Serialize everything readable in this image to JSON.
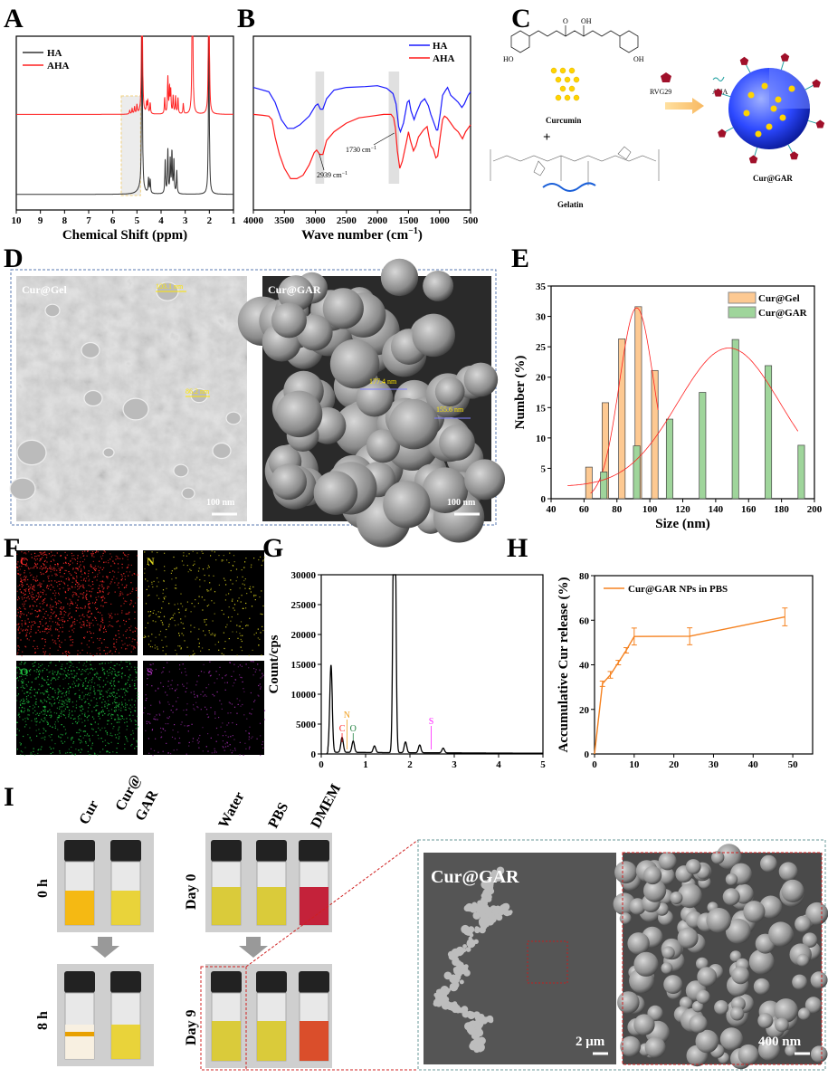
{
  "panel_labels": [
    "A",
    "B",
    "C",
    "D",
    "E",
    "F",
    "G",
    "H",
    "I"
  ],
  "chart_data": [
    {
      "panel": "A",
      "type": "line",
      "xlabel": "Chemical Shift (ppm)",
      "xlim": [
        10,
        1
      ],
      "xticks": [
        10,
        9,
        8,
        7,
        6,
        5,
        4,
        3,
        2,
        1
      ],
      "ylim": [
        0,
        100
      ],
      "grid": false,
      "legend_position": "top-left",
      "highlight_region_ppm": [
        5.65,
        4.85
      ],
      "series": [
        {
          "name": "HA",
          "color": "#333333",
          "baseline": 9,
          "peaks": [
            [
              4.79,
              120
            ],
            [
              4.85,
              3
            ],
            [
              4.52,
              8.5
            ],
            [
              4.45,
              7.5
            ],
            [
              3.83,
              19
            ],
            [
              3.72,
              25
            ],
            [
              3.62,
              19
            ],
            [
              3.55,
              23
            ],
            [
              3.47,
              19
            ],
            [
              3.35,
              13
            ],
            [
              2.02,
              120
            ]
          ]
        },
        {
          "name": "AHA",
          "color": "#ff2020",
          "baseline": 55,
          "peaks": [
            [
              5.3,
              2
            ],
            [
              5.2,
              3
            ],
            [
              5.1,
              4
            ],
            [
              5.0,
              5
            ],
            [
              4.79,
              120
            ],
            [
              4.6,
              6
            ],
            [
              4.55,
              7
            ],
            [
              4.45,
              6
            ],
            [
              3.85,
              9
            ],
            [
              3.72,
              21
            ],
            [
              3.65,
              14
            ],
            [
              3.6,
              13
            ],
            [
              3.5,
              10
            ],
            [
              3.4,
              10
            ],
            [
              3.3,
              9
            ],
            [
              3.08,
              6
            ],
            [
              2.7,
              120
            ],
            [
              2.02,
              120
            ]
          ]
        }
      ]
    },
    {
      "panel": "B",
      "type": "line",
      "xlabel": "Wave number (cm",
      "xlabel_sup": "−1",
      "xlabel_end": ")",
      "xlim": [
        4000,
        500
      ],
      "xticks": [
        4000,
        3500,
        3000,
        2500,
        2000,
        1500,
        1000,
        500
      ],
      "ylim": [
        0,
        100
      ],
      "grid": false,
      "legend_position": "top-right",
      "highlight_bands": [
        [
          3000,
          2860
        ],
        [
          1820,
          1650
        ]
      ],
      "annotations": [
        {
          "text": "2939 cm",
          "sup": "−1",
          "x": 2939
        },
        {
          "text": "1730 cm",
          "sup": "−1",
          "x": 1730
        }
      ],
      "series": [
        {
          "name": "HA",
          "color": "#1a1aff",
          "points": [
            [
              4000,
              70.5
            ],
            [
              3750,
              68
            ],
            [
              3650,
              62
            ],
            [
              3550,
              52
            ],
            [
              3450,
              47
            ],
            [
              3350,
              47
            ],
            [
              3250,
              49
            ],
            [
              3100,
              54
            ],
            [
              3000,
              60
            ],
            [
              2960,
              61
            ],
            [
              2920,
              58
            ],
            [
              2880,
              58
            ],
            [
              2820,
              64
            ],
            [
              2700,
              69
            ],
            [
              2500,
              70.5
            ],
            [
              2200,
              71
            ],
            [
              2000,
              71.5
            ],
            [
              1850,
              70
            ],
            [
              1750,
              67
            ],
            [
              1700,
              61
            ],
            [
              1660,
              48
            ],
            [
              1630,
              45
            ],
            [
              1580,
              50
            ],
            [
              1520,
              62
            ],
            [
              1490,
              63
            ],
            [
              1460,
              57
            ],
            [
              1410,
              52
            ],
            [
              1370,
              56
            ],
            [
              1300,
              62
            ],
            [
              1240,
              64
            ],
            [
              1180,
              60
            ],
            [
              1140,
              55
            ],
            [
              1100,
              51
            ],
            [
              1050,
              46
            ],
            [
              1030,
              46
            ],
            [
              990,
              55
            ],
            [
              950,
              66
            ],
            [
              900,
              69
            ],
            [
              870,
              70.5
            ],
            [
              820,
              66
            ],
            [
              760,
              64
            ],
            [
              700,
              62
            ],
            [
              640,
              59
            ],
            [
              600,
              61
            ],
            [
              540,
              66
            ],
            [
              500,
              68
            ]
          ]
        },
        {
          "name": "AHA",
          "color": "#ff1a1a",
          "points": [
            [
              4000,
              55
            ],
            [
              3850,
              54.5
            ],
            [
              3750,
              54
            ],
            [
              3700,
              52
            ],
            [
              3650,
              42
            ],
            [
              3580,
              32
            ],
            [
              3500,
              24
            ],
            [
              3400,
              18
            ],
            [
              3300,
              18
            ],
            [
              3200,
              20
            ],
            [
              3100,
              26
            ],
            [
              3020,
              33
            ],
            [
              2980,
              34.5
            ],
            [
              2930,
              32
            ],
            [
              2880,
              32
            ],
            [
              2820,
              40
            ],
            [
              2700,
              45
            ],
            [
              2500,
              50
            ],
            [
              2300,
              53
            ],
            [
              2100,
              54
            ],
            [
              1900,
              55
            ],
            [
              1780,
              55
            ],
            [
              1740,
              53
            ],
            [
              1710,
              47
            ],
            [
              1680,
              34
            ],
            [
              1640,
              24
            ],
            [
              1600,
              28
            ],
            [
              1540,
              38
            ],
            [
              1500,
              45
            ],
            [
              1470,
              40
            ],
            [
              1420,
              34
            ],
            [
              1380,
              37
            ],
            [
              1340,
              42
            ],
            [
              1260,
              46
            ],
            [
              1200,
              48
            ],
            [
              1170,
              42
            ],
            [
              1140,
              37
            ],
            [
              1100,
              35
            ],
            [
              1060,
              30
            ],
            [
              1030,
              31
            ],
            [
              990,
              42
            ],
            [
              950,
              52
            ],
            [
              920,
              54
            ],
            [
              880,
              53
            ],
            [
              820,
              50
            ],
            [
              760,
              47
            ],
            [
              700,
              45
            ],
            [
              630,
              41
            ],
            [
              580,
              45
            ],
            [
              500,
              49
            ]
          ]
        }
      ]
    },
    {
      "panel": "E",
      "type": "bar",
      "xlabel": "Size (nm)",
      "ylabel": "Number (%)",
      "xlim": [
        40,
        200
      ],
      "ylim": [
        0,
        35
      ],
      "xticks": [
        40,
        60,
        80,
        100,
        120,
        140,
        160,
        180,
        200
      ],
      "yticks": [
        0,
        5,
        10,
        15,
        20,
        25,
        30,
        35
      ],
      "legend_position": "top-right",
      "series": [
        {
          "name": "Cur@Gel",
          "color": "#fdc992",
          "x": [
            63,
            73,
            83,
            93,
            103
          ],
          "values": [
            5.2,
            15.8,
            26.3,
            31.6,
            21.1
          ],
          "fit": {
            "type": "gaussian",
            "center": 92,
            "amplitude": 31.4,
            "sigma": 10.5,
            "offset": 0,
            "range": [
              64,
              105
            ]
          }
        },
        {
          "name": "Cur@GAR",
          "color": "#9fd59b",
          "x": [
            72,
            92,
            112,
            132,
            152,
            172,
            192
          ],
          "values": [
            4.4,
            8.7,
            13.1,
            17.5,
            26.2,
            21.9,
            8.8
          ],
          "fit": {
            "type": "gaussian",
            "center": 148,
            "amplitude": 22.8,
            "sigma": 31,
            "offset": 2,
            "range": [
              50,
              190
            ]
          }
        }
      ],
      "fit_color": "#ff2020"
    },
    {
      "panel": "G",
      "type": "line",
      "ylabel": "Count/cps",
      "xlim": [
        0,
        5
      ],
      "ylim": [
        0,
        30000
      ],
      "xticks": [
        0,
        1,
        2,
        3,
        4,
        5
      ],
      "yticks": [
        0,
        5000,
        10000,
        15000,
        20000,
        25000,
        30000
      ],
      "baseline": 250,
      "peaks": [
        [
          0.22,
          14600
        ],
        [
          0.47,
          2500
        ],
        [
          0.72,
          1900
        ],
        [
          1.2,
          1100
        ],
        [
          1.65,
          60000
        ],
        [
          1.9,
          1800
        ],
        [
          2.22,
          1300
        ],
        [
          2.75,
          800
        ]
      ],
      "element_markers": [
        {
          "label": "C",
          "x": 0.47,
          "color": "#ff2020"
        },
        {
          "label": "N",
          "x": 0.58,
          "color": "#f0a020"
        },
        {
          "label": "O",
          "x": 0.72,
          "color": "#208040"
        },
        {
          "label": "S",
          "x": 2.48,
          "color": "#ff20ff"
        }
      ]
    },
    {
      "panel": "H",
      "type": "line",
      "ylabel": "Accumulative Cur release (%)",
      "xlim": [
        0,
        55
      ],
      "ylim": [
        0,
        80
      ],
      "xticks": [
        0,
        10,
        20,
        30,
        40,
        50
      ],
      "yticks": [
        0,
        20,
        40,
        60,
        80
      ],
      "legend_position": "top-left",
      "series": [
        {
          "name": "Cur@GAR NPs in PBS",
          "color": "#f58220",
          "x": [
            0,
            2,
            4,
            6,
            8,
            10,
            24,
            48
          ],
          "values": [
            0,
            31.5,
            35.5,
            41,
            46.5,
            52.7,
            52.8,
            61.5
          ],
          "errors": [
            0,
            1.2,
            1.5,
            1,
            1.2,
            3.8,
            3.8,
            4
          ]
        }
      ]
    }
  ],
  "scheme_c": {
    "curcumin_label": "Curcumin",
    "plus": "+",
    "gelatin_label": "Gelatin",
    "rvg29_label": "RVG29",
    "aha_label": "AHA",
    "product_label": "Cur@GAR",
    "atom_labels": [
      "HO",
      "O",
      "OH",
      "OH",
      "O"
    ],
    "sphere_color": "#1f3cff",
    "drug_color": "#ffd400",
    "peptide_color": "#a0102a"
  },
  "sem_d": {
    "left": {
      "title": "Cur@Gel",
      "measures": [
        "103.1 nm",
        "86.2 nm"
      ],
      "scale": "100 nm"
    },
    "right": {
      "title": "Cur@GAR",
      "measures": [
        "177.4 nm",
        "155.6 nm"
      ],
      "scale": "100 nm"
    }
  },
  "eds_f": {
    "maps": [
      {
        "element": "C",
        "color": "#ff2a2a"
      },
      {
        "element": "N",
        "color": "#d8d020"
      },
      {
        "element": "O",
        "color": "#20c040"
      },
      {
        "element": "S",
        "color": "#9a2aa8"
      }
    ]
  },
  "photos_i": {
    "group1": {
      "columns": [
        "Cur",
        "Cur@",
        "GAR"
      ],
      "rows": [
        "0 h",
        "8 h"
      ]
    },
    "group2": {
      "columns": [
        "Water",
        "PBS",
        "DMEM"
      ],
      "rows": [
        "Day 0",
        "Day 9"
      ]
    },
    "sem": {
      "title": "Cur@GAR",
      "scale_left": "2 μm",
      "scale_right": "400 nm"
    },
    "liquid_colors": {
      "cur_0h": "#f5b400",
      "gar_0h": "#e8d02a",
      "water": "#d8c82a",
      "pbs": "#d8c82a",
      "dmem0": "#c0102a",
      "dmem9": "#d8401a",
      "cur_8h": "#f8f0e0"
    }
  }
}
